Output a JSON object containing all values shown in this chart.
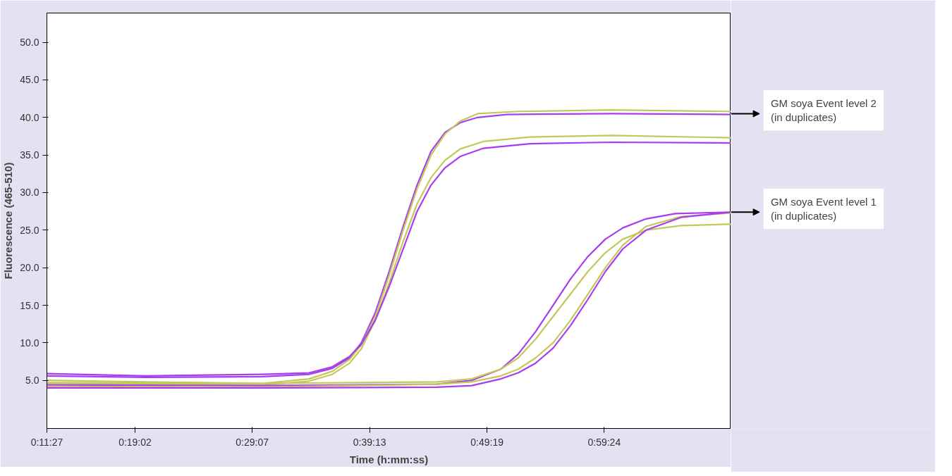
{
  "chart_data": {
    "type": "line",
    "xlabel": "Time (h:mm:ss)",
    "ylabel": "Fluorescence (465-510)",
    "xlim": [
      11.45,
      70.3
    ],
    "xticks": [
      {
        "value": 11.45,
        "label": "0:11:27"
      },
      {
        "value": 19.033,
        "label": "0:19:02"
      },
      {
        "value": 29.117,
        "label": "0:29:07"
      },
      {
        "value": 39.217,
        "label": "0:39:13"
      },
      {
        "value": 49.317,
        "label": "0:49:19"
      },
      {
        "value": 59.4,
        "label": "0:59:24"
      }
    ],
    "ylim": [
      -1.4,
      53.9
    ],
    "yticks": [
      {
        "value": 5,
        "label": "5.0"
      },
      {
        "value": 10,
        "label": "10.0"
      },
      {
        "value": 15,
        "label": "15.0"
      },
      {
        "value": 20,
        "label": "20.0"
      },
      {
        "value": 25,
        "label": "25.0"
      },
      {
        "value": 30,
        "label": "30.0"
      },
      {
        "value": 35,
        "label": "35.0"
      },
      {
        "value": 40,
        "label": "40.0"
      },
      {
        "value": 45,
        "label": "45.0"
      },
      {
        "value": 50,
        "label": "50.0"
      }
    ],
    "grid": false,
    "line_style": "solid",
    "marker": "none",
    "annotations": [
      {
        "text": "GM soya Event level 2\n(in duplicates)",
        "x": 70.3,
        "y": 40.5
      },
      {
        "text": "GM soya Event level 1\n(in duplicates)",
        "x": 70.3,
        "y": 27.4
      }
    ],
    "series": [
      {
        "color": "#a83cf0",
        "x": [
          11.45,
          20,
          30,
          34,
          36,
          37.5,
          38.5,
          39.7,
          40.9,
          42.1,
          43.3,
          44.5,
          45.7,
          47,
          48.5,
          51,
          60,
          70.3
        ],
        "values": [
          5.6,
          5.4,
          5.5,
          5.8,
          6.6,
          8,
          10,
          14,
          19.5,
          25.5,
          31,
          35.5,
          38,
          39.3,
          40,
          40.4,
          40.5,
          40.4
        ]
      },
      {
        "color": "#c4c85a",
        "x": [
          11.45,
          20,
          30,
          34,
          36,
          37.5,
          38.5,
          39.7,
          40.9,
          42.1,
          43.3,
          44.5,
          45.7,
          47,
          48.5,
          52,
          60,
          70.3
        ],
        "values": [
          5.0,
          4.8,
          4.6,
          5.2,
          6.2,
          7.8,
          9.7,
          13.5,
          19,
          25,
          30.5,
          35,
          37.8,
          39.5,
          40.5,
          40.8,
          41,
          40.8
        ]
      },
      {
        "color": "#c4c85a",
        "x": [
          11.45,
          20,
          30,
          34,
          36,
          37.5,
          38.5,
          39.7,
          40.9,
          42.1,
          43.3,
          44.5,
          45.7,
          47,
          49,
          53,
          60,
          70.3
        ],
        "values": [
          4.6,
          4.5,
          4.4,
          4.9,
          5.8,
          7.3,
          9.2,
          13,
          18,
          23.5,
          28.5,
          32,
          34.3,
          35.8,
          36.8,
          37.4,
          37.6,
          37.3
        ]
      },
      {
        "color": "#a83cf0",
        "x": [
          11.45,
          20,
          30,
          34,
          36,
          37.5,
          38.5,
          39.7,
          40.9,
          42.1,
          43.3,
          44.5,
          45.7,
          47,
          49,
          53,
          60,
          70.3
        ],
        "values": [
          5.9,
          5.6,
          5.8,
          6.0,
          6.8,
          8.2,
          9.8,
          13,
          17.5,
          22.5,
          27.5,
          31,
          33.3,
          34.8,
          35.9,
          36.5,
          36.7,
          36.6
        ]
      },
      {
        "color": "#a83cf0",
        "x": [
          11.45,
          30,
          45,
          48,
          50.5,
          52,
          53.5,
          55,
          56.5,
          58,
          59.5,
          61,
          63,
          65.5,
          70.3
        ],
        "values": [
          4.4,
          4.3,
          4.5,
          5,
          6.5,
          8.5,
          11.5,
          15,
          18.5,
          21.5,
          23.8,
          25.3,
          26.5,
          27.2,
          27.4
        ]
      },
      {
        "color": "#c4c85a",
        "x": [
          11.45,
          30,
          45,
          48,
          50.5,
          52,
          53.5,
          55,
          56.5,
          58,
          59.5,
          61,
          63,
          66,
          70.3
        ],
        "values": [
          4.7,
          4.6,
          4.8,
          5.2,
          6.5,
          8,
          10.5,
          13.5,
          16.5,
          19.5,
          22,
          23.8,
          25,
          25.6,
          25.8
        ]
      },
      {
        "color": "#c4c85a",
        "x": [
          11.45,
          30,
          45,
          48,
          50.5,
          52,
          53.5,
          55,
          56.5,
          58,
          59.5,
          61,
          63,
          66,
          70.3
        ],
        "values": [
          4.2,
          4.1,
          4.5,
          4.8,
          5.6,
          6.5,
          8,
          10,
          13,
          16.5,
          20,
          23,
          25.5,
          26.8,
          27.3
        ]
      },
      {
        "color": "#a83cf0",
        "x": [
          11.45,
          30,
          45,
          48,
          50.5,
          52,
          53.5,
          55,
          56.5,
          58,
          59.5,
          61,
          63,
          66,
          70.3
        ],
        "values": [
          4.0,
          4.0,
          4.1,
          4.3,
          5.2,
          6,
          7.3,
          9.3,
          12.3,
          15.8,
          19.5,
          22.5,
          25,
          26.7,
          27.4
        ]
      }
    ]
  }
}
